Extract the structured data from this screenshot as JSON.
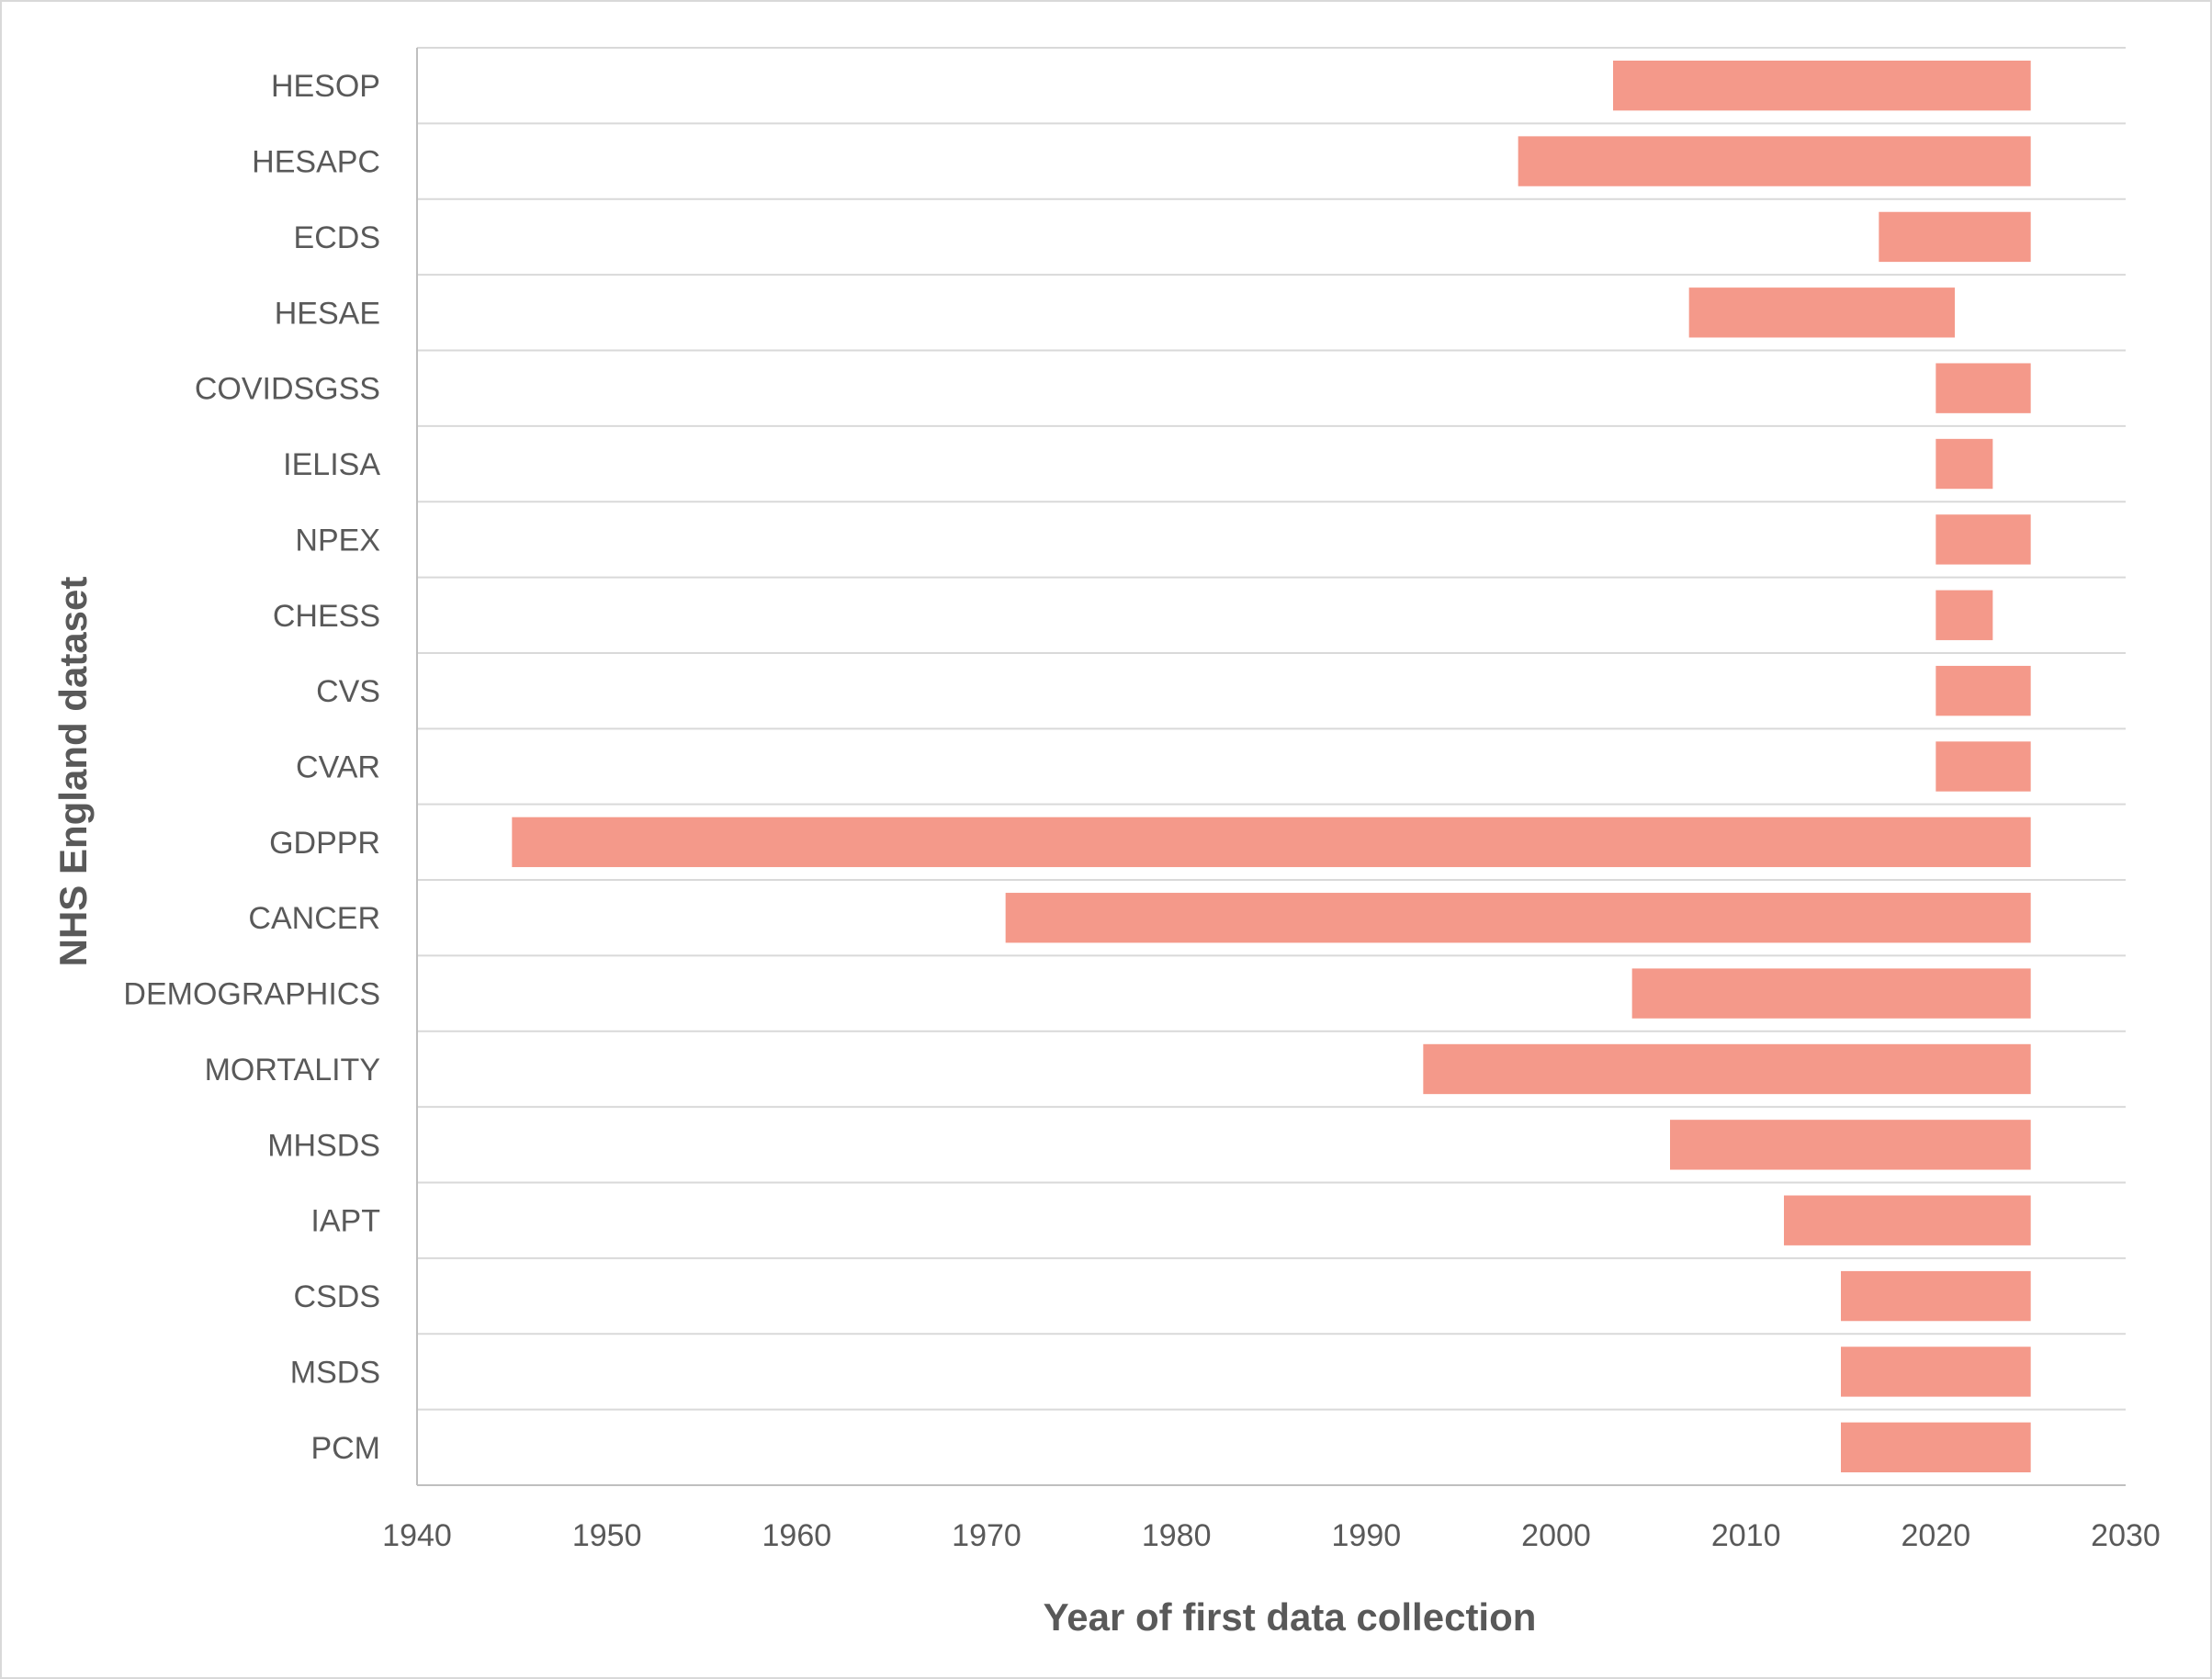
{
  "chart_data": {
    "type": "bar",
    "orientation": "horizontal-range",
    "title": "",
    "xlabel": "Year of first data collection",
    "ylabel": "NHS England dataset",
    "xlim": [
      1940,
      2030
    ],
    "xticks": [
      1940,
      1950,
      1960,
      1970,
      1980,
      1990,
      2000,
      2010,
      2020,
      2030
    ],
    "grid": "horizontal",
    "legend": "none",
    "bar_color": "#f4998a",
    "categories": [
      "HESOP",
      "HESAPC",
      "ECDS",
      "HESAE",
      "COVIDSGSS",
      "IELISA",
      "NPEX",
      "CHESS",
      "CVS",
      "CVAR",
      "GDPPR",
      "CANCER",
      "DEMOGRAPHICS",
      "MORTALITY",
      "MHSDS",
      "IAPT",
      "CSDS",
      "MSDS",
      "PCM"
    ],
    "start": [
      2003,
      1998,
      2017,
      2007,
      2020,
      2020,
      2020,
      2020,
      2020,
      2020,
      1945,
      1971,
      2004,
      1993,
      2006,
      2012,
      2015,
      2015,
      2015
    ],
    "end": [
      2025,
      2025,
      2025,
      2021,
      2025,
      2023,
      2025,
      2023,
      2025,
      2025,
      2025,
      2025,
      2025,
      2025,
      2025,
      2025,
      2025,
      2025,
      2025
    ]
  }
}
